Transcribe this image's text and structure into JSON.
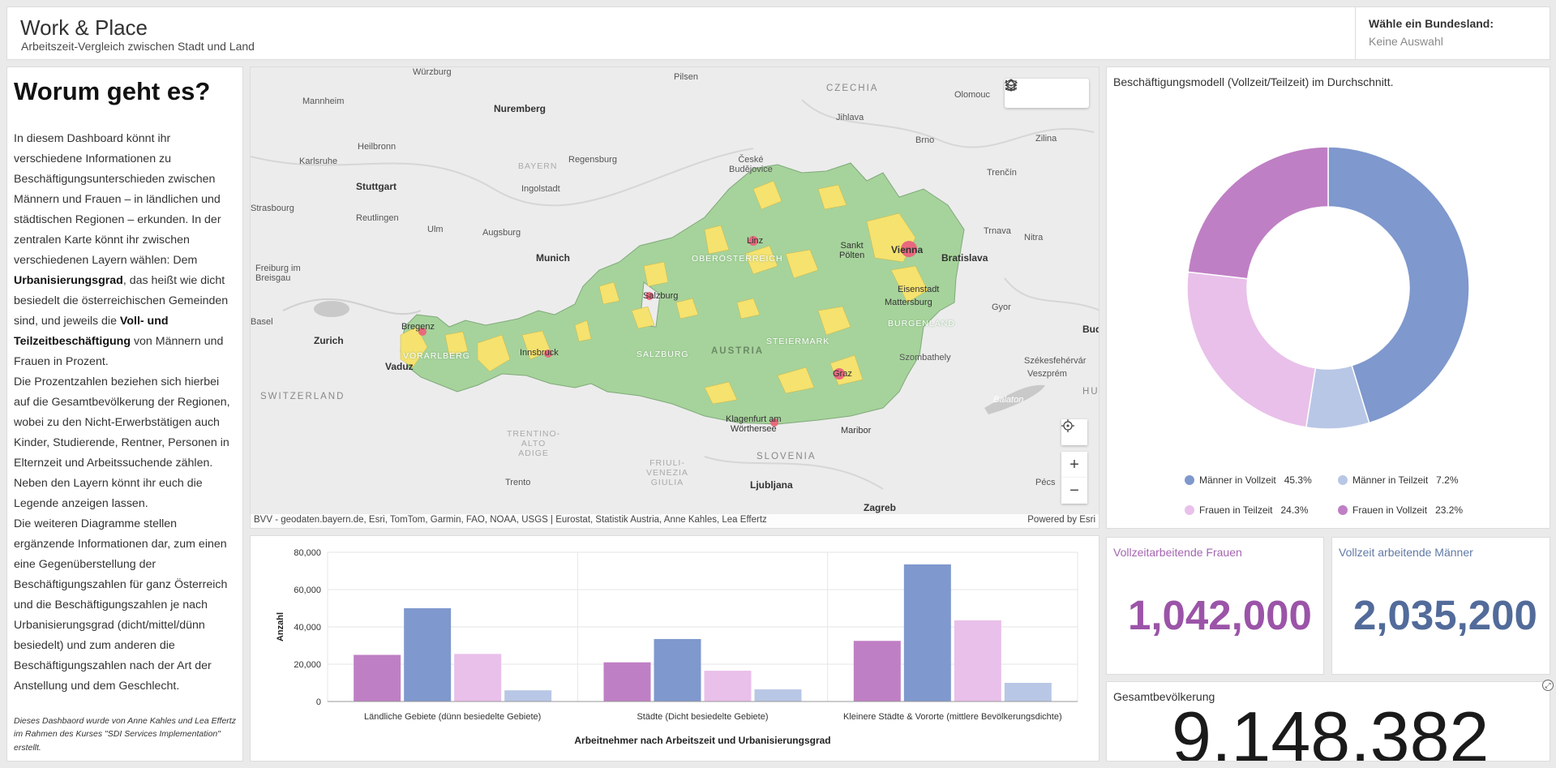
{
  "header": {
    "title": "Work & Place",
    "subtitle": "Arbeitszeit-Vergleich zwischen Stadt und Land",
    "selector_label": "Wähle ein Bundesland:",
    "selector_value": "Keine Auswahl"
  },
  "intro": {
    "heading": "Worum geht es?",
    "p1_a": "In diesem Dashboard könnt ihr verschiedene Informationen zu Beschäftigungsunterschieden zwischen Männern und Frauen – in ländlichen und städtischen Regionen – erkunden. In der zentralen Karte könnt ihr zwischen verschiedenen Layern wählen: Dem ",
    "p1_b": "Urbanisierungsgrad",
    "p1_c": ", das heißt wie dicht besiedelt die österreichischen Gemeinden sind, und jeweils die ",
    "p1_d": "Voll- und Teilzeitbeschäftigung",
    "p1_e": " von Männern und Frauen in Prozent.",
    "p2": "Die Prozentzahlen beziehen sich hierbei auf die Gesamtbevölkerung der Regionen, wobei zu den Nicht-Erwerbstätigen auch Kinder, Studierende, Rentner, Personen in Elternzeit und Arbeitssuchende zählen.",
    "p3": "Neben den Layern könnt ihr euch die Legende anzeigen lassen.",
    "p4": "Die weiteren Diagramme stellen ergänzende Informationen dar, zum einen eine Gegenüberstellung der Beschäftigungszahlen für ganz Österreich und die Beschäftigungszahlen je nach Urbanisierungsgrad (dicht/mittel/dünn besiedelt) und zum anderen die Beschäftigungszahlen nach der Art der Anstellung und dem Geschlecht.",
    "credit": "Dieses Dashbaord wurde von Anne Kahles und Lea Effertz im Rahmen des Kurses \"SDI Services Implementation\" erstellt."
  },
  "map": {
    "attribution": "BVV - geodaten.bayern.de, Esri, TomTom, Garmin, FAO, NOAA, USGS | Eurostat, Statistik Austria, Anne Kahles, Lea Effertz",
    "powered": "Powered by Esri",
    "zoom_in": "+",
    "zoom_out": "−",
    "labels": {
      "wurzburg": "Würzburg",
      "pilsen": "Pilsen",
      "czechia": "CZECHIA",
      "olomouc": "Olomouc",
      "mannheim": "Mannheim",
      "nuremberg": "Nuremberg",
      "jihlava": "Jihlava",
      "brno": "Brno",
      "zilina": "Zilina",
      "heilbronn": "Heilbronn",
      "karlsruhe": "Karlsruhe",
      "bayern": "BAYERN",
      "regensburg": "Regensburg",
      "ceske": "České\nBudějovice",
      "stuttgart": "Stuttgart",
      "ingolstadt": "Ingolstadt",
      "trencin": "Trenčín",
      "strasbourg": "Strasbourg",
      "reutlingen": "Reutlingen",
      "ulm": "Ulm",
      "augsburg": "Augsburg",
      "trnava": "Trnava",
      "nitra": "Nitra",
      "munich": "Munich",
      "linz": "Linz",
      "sankt": "Sankt\nPölten",
      "vienna": "Vienna",
      "bratislava": "Bratislava",
      "freiburg": "Freiburg im\nBreisgau",
      "oberosterreich": "OBERÖSTERREICH",
      "salzburg": "Salzburg",
      "eisenstadt": "Eisenstadt",
      "mattersburg": "Mattersburg",
      "gyor": "Gyor",
      "basel": "Basel",
      "bregenz": "Bregenz",
      "burgenland": "BURGENLAND",
      "zurich": "Zurich",
      "steiermark": "STEIERMARK",
      "bud": "Bud",
      "innsbruck": "Innsbruck",
      "austria": "AUSTRIA",
      "vorarlberg": "VORARLBERG",
      "salzburg_reg": "SALZBURG",
      "szombathely": "Szombathely",
      "vaduz": "Vaduz",
      "graz": "Graz",
      "szekes": "Székesfehérvár",
      "veszprem": "Veszprém",
      "switzerland": "SWITZERLAND",
      "balaton": "Balaton",
      "hu": "HU",
      "trentino": "TRENTINO-\nALTO\nADIGE",
      "klagenfurt": "Klagenfurt am\nWörthersee",
      "maribor": "Maribor",
      "slovenia": "SLOVENIA",
      "friuli": "FRIULI-\nVENEZIA\nGIULIA",
      "trento": "Trento",
      "ljubljana": "Ljubljana",
      "pecs": "Pécs",
      "zagreb": "Zagreb"
    }
  },
  "colors": {
    "male_full": "#7f98cd",
    "male_part": "#b9c7e6",
    "female_part": "#e9c0ea",
    "female_full": "#bf7fc4",
    "women_value": "#9b54a8",
    "men_value": "#526b9a",
    "map_green": "#a6d39b",
    "map_yellow": "#f5e26f",
    "map_red": "#e8697d"
  },
  "chart_data": [
    {
      "type": "bar",
      "title": "",
      "xlabel": "Arbeitnehmer nach Arbeitszeit und Urbanisierungsgrad",
      "ylabel": "Anzahl",
      "ylim": [
        0,
        80000
      ],
      "yticks": [
        0,
        20000,
        40000,
        60000,
        80000
      ],
      "ytick_labels": [
        "0",
        "20,000",
        "40,000",
        "60,000",
        "80,000"
      ],
      "categories": [
        "Ländliche Gebiete (dünn besiedelte Gebiete)",
        "Städte (Dicht besiedelte Gebiete)",
        "Kleinere Städte & Vororte (mittlere Bevölkerungsdichte)"
      ],
      "series": [
        {
          "values": [
            25000,
            21000,
            32500
          ],
          "color": "#bf7fc4"
        },
        {
          "values": [
            50000,
            33500,
            73500
          ],
          "color": "#7f98cd"
        },
        {
          "values": [
            25500,
            16500,
            43500
          ],
          "color": "#e9c0ea"
        },
        {
          "values": [
            6000,
            6500,
            10000
          ],
          "color": "#b9c7e6"
        }
      ]
    },
    {
      "type": "pie",
      "title": "Beschäftigungsmodell (Vollzeit/Teilzeit) im Durchschnitt.",
      "legend": "bottom",
      "slices": [
        {
          "name": "Männer in Vollzeit",
          "value": 45.3,
          "label": "45.3%",
          "color": "#7f98cd"
        },
        {
          "name": "Männer in Teilzeit",
          "value": 7.2,
          "label": "7.2%",
          "color": "#b9c7e6"
        },
        {
          "name": "Frauen in Teilzeit",
          "value": 24.3,
          "label": "24.3%",
          "color": "#e9c0ea"
        },
        {
          "name": "Frauen in Vollzeit",
          "value": 23.2,
          "label": "23.2%",
          "color": "#bf7fc4"
        }
      ]
    }
  ],
  "indicators": {
    "women_title": "Vollzeitarbeitende Frauen",
    "women_value": "1,042,000",
    "men_title": "Vollzeit arbeitende Männer",
    "men_value": "2,035,200",
    "pop_title": "Gesamtbevölkerung",
    "pop_value": "9,148,382"
  }
}
